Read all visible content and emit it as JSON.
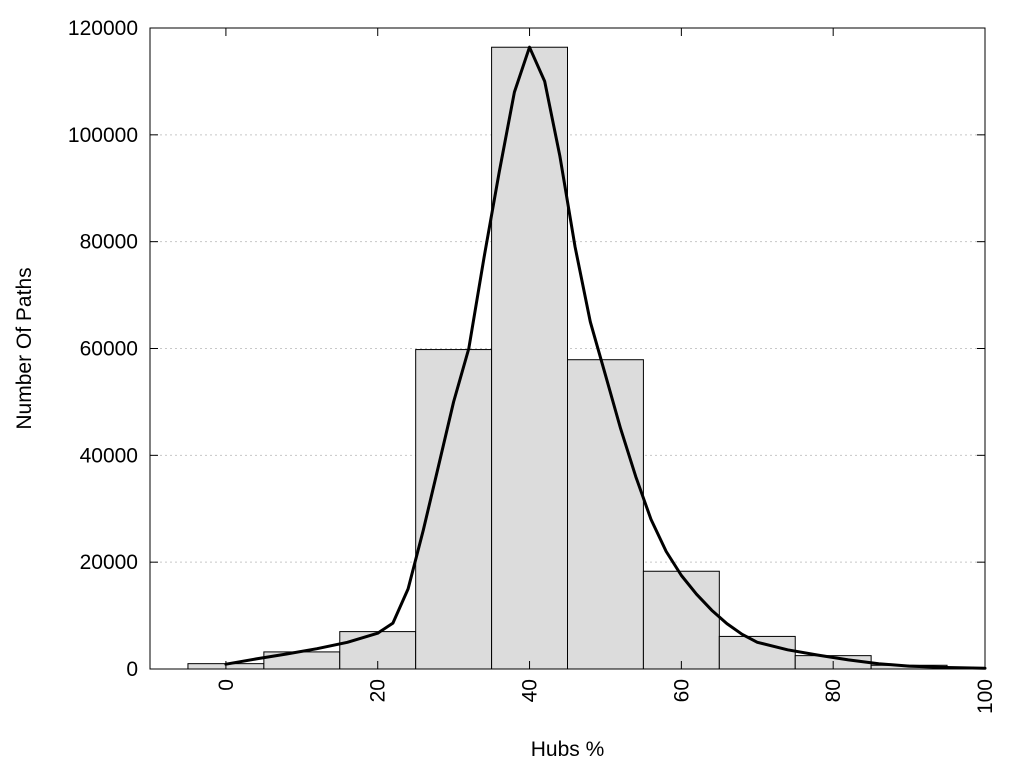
{
  "chart_data": {
    "type": "bar",
    "xlabel": "Hubs %",
    "ylabel": "Number Of Paths",
    "xlim": [
      -10,
      100
    ],
    "ylim": [
      0,
      120000
    ],
    "x_ticks": [
      "0",
      "20",
      "40",
      "60",
      "80",
      "100"
    ],
    "y_ticks": [
      "0",
      "20000",
      "40000",
      "60000",
      "80000",
      "100000",
      "120000"
    ],
    "grid": "horizontal dotted",
    "bar_width": 10,
    "bars": [
      {
        "x": 0,
        "value": 1000
      },
      {
        "x": 10,
        "value": 3200
      },
      {
        "x": 20,
        "value": 7000
      },
      {
        "x": 30,
        "value": 59800
      },
      {
        "x": 40,
        "value": 116400
      },
      {
        "x": 50,
        "value": 57900
      },
      {
        "x": 60,
        "value": 18300
      },
      {
        "x": 70,
        "value": 6100
      },
      {
        "x": 80,
        "value": 2500
      },
      {
        "x": 90,
        "value": 700
      },
      {
        "x": 100,
        "value": 150
      }
    ],
    "curve": [
      [
        0,
        900
      ],
      [
        4,
        1900
      ],
      [
        8,
        2800
      ],
      [
        12,
        3800
      ],
      [
        16,
        5000
      ],
      [
        20,
        6700
      ],
      [
        22,
        8600
      ],
      [
        24,
        15000
      ],
      [
        26,
        26000
      ],
      [
        28,
        38000
      ],
      [
        30,
        50000
      ],
      [
        32,
        60000
      ],
      [
        34,
        77000
      ],
      [
        36,
        93000
      ],
      [
        38,
        108000
      ],
      [
        40,
        116400
      ],
      [
        42,
        110000
      ],
      [
        44,
        96000
      ],
      [
        46,
        79000
      ],
      [
        48,
        65000
      ],
      [
        50,
        55000
      ],
      [
        52,
        45000
      ],
      [
        54,
        36000
      ],
      [
        56,
        28000
      ],
      [
        58,
        22000
      ],
      [
        60,
        17500
      ],
      [
        62,
        14000
      ],
      [
        64,
        11000
      ],
      [
        66,
        8500
      ],
      [
        68,
        6500
      ],
      [
        70,
        5000
      ],
      [
        74,
        3600
      ],
      [
        78,
        2600
      ],
      [
        82,
        1700
      ],
      [
        86,
        1000
      ],
      [
        90,
        550
      ],
      [
        95,
        280
      ],
      [
        100,
        150
      ]
    ]
  },
  "colors": {
    "bar_fill": "#dcdcdc",
    "bar_stroke": "#000000",
    "curve": "#000000",
    "grid": "#c8c8c8"
  }
}
